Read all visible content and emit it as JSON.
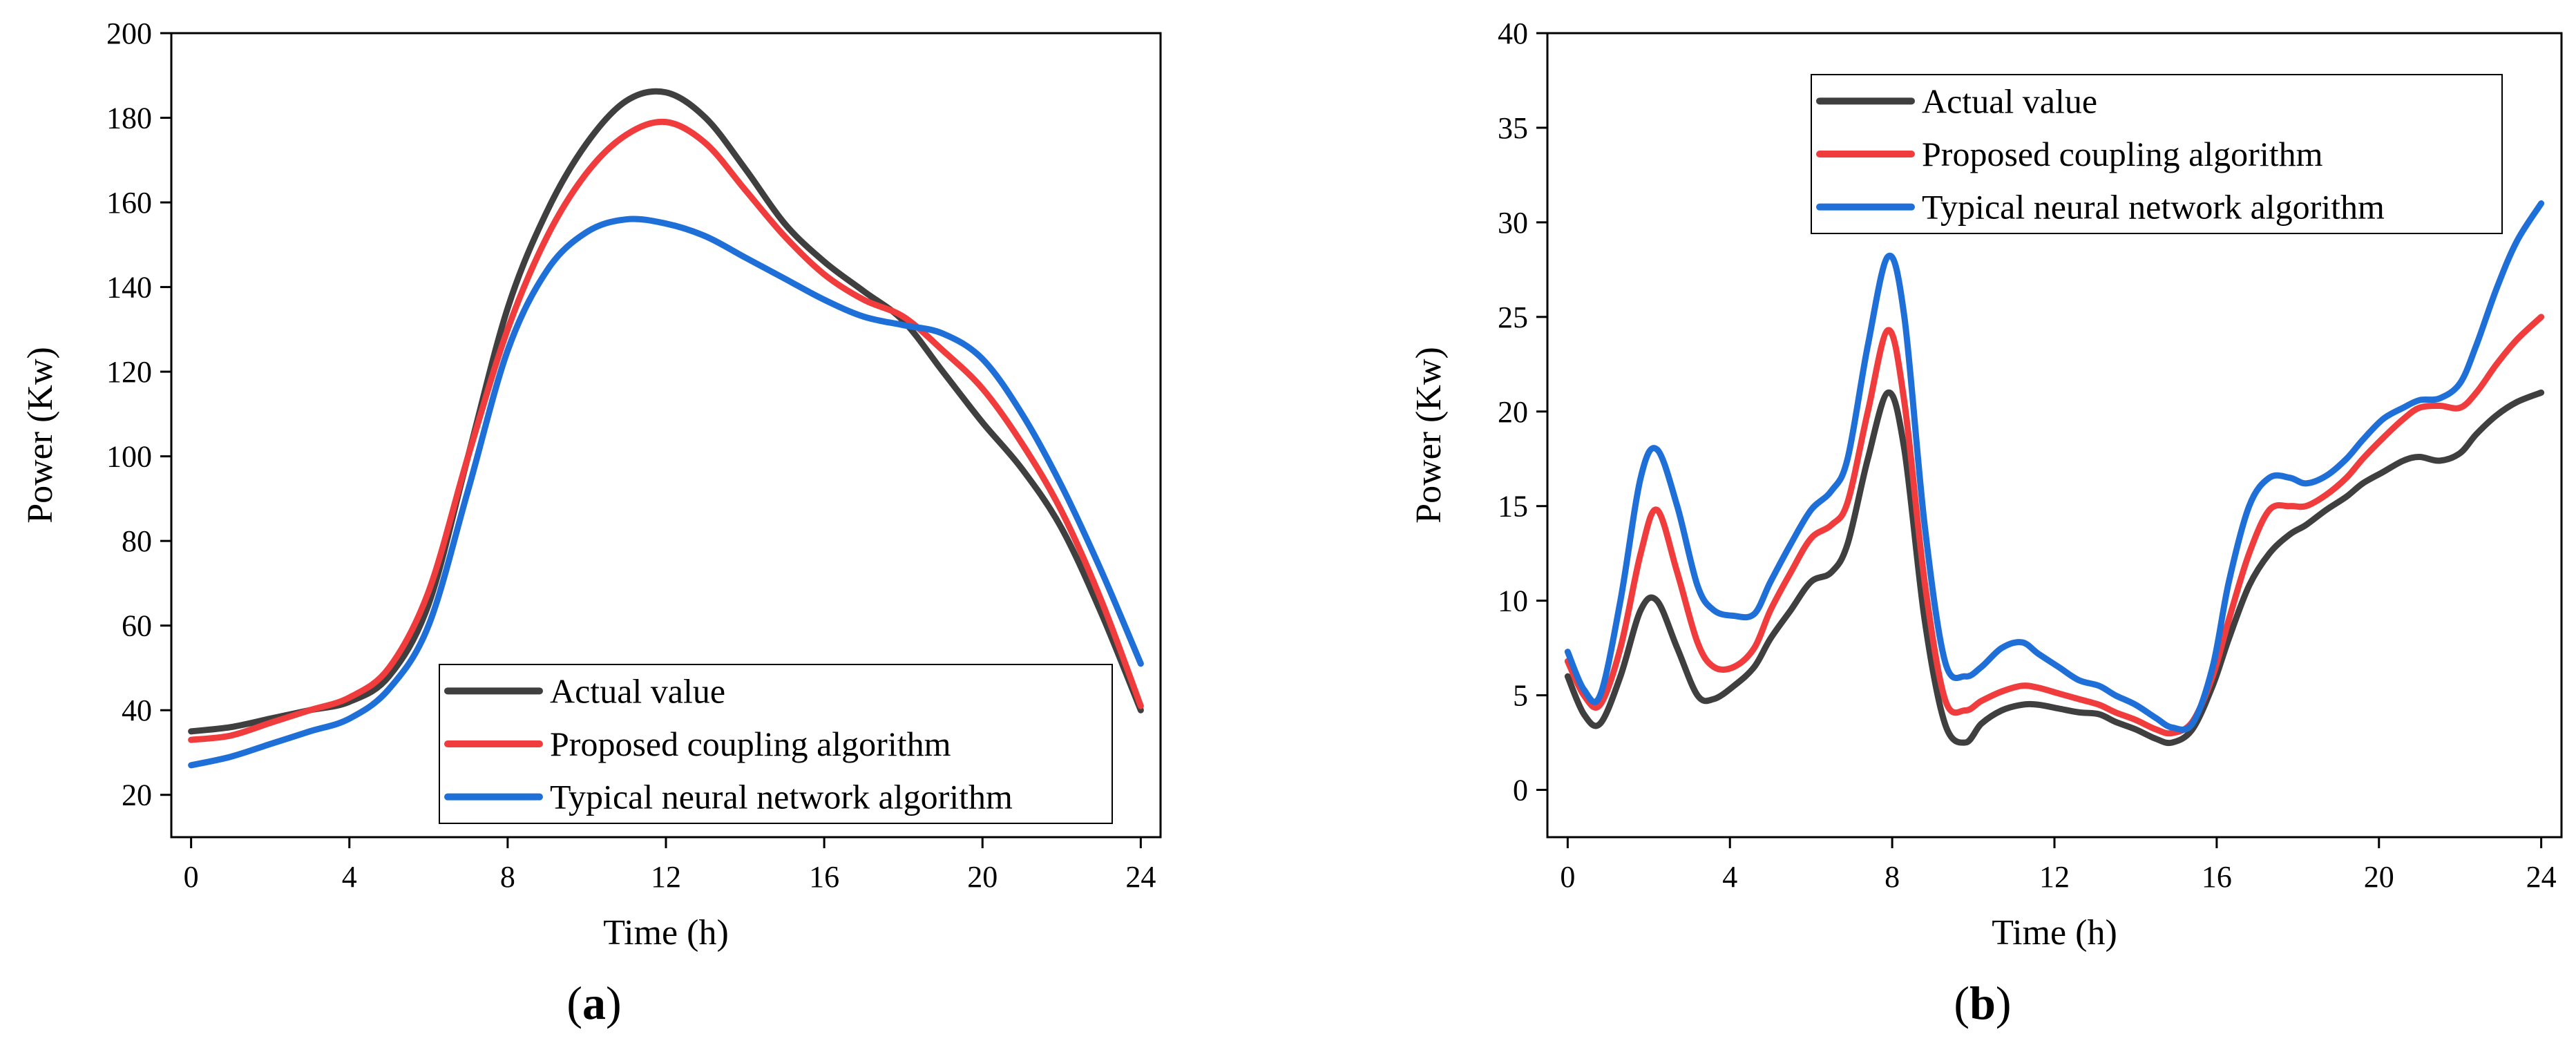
{
  "figure_labels": {
    "a": {
      "open": "(",
      "letter": "a",
      "close": ")"
    },
    "b": {
      "open": "(",
      "letter": "b",
      "close": ")"
    }
  },
  "chart_data": [
    {
      "id": "a",
      "type": "line",
      "xlabel": "Time (h)",
      "ylabel": "Power (Kw)",
      "xlim": [
        -0.5,
        24.5
      ],
      "ylim": [
        10,
        200
      ],
      "xticks": [
        0,
        4,
        8,
        12,
        16,
        20,
        24
      ],
      "yticks": [
        20,
        40,
        60,
        80,
        100,
        120,
        140,
        160,
        180,
        200
      ],
      "legend_position": "bottom-right",
      "series": [
        {
          "name": "Actual value",
          "color": "#3f3f3f",
          "x": [
            0,
            1,
            2,
            3,
            4,
            5,
            6,
            7,
            8,
            9,
            10,
            11,
            12,
            13,
            14,
            15,
            16,
            17,
            18,
            19,
            20,
            21,
            22,
            23,
            24
          ],
          "values": [
            35,
            36,
            38,
            40,
            42,
            48,
            65,
            100,
            135,
            158,
            174,
            184,
            186,
            180,
            168,
            155,
            146,
            139,
            132,
            120,
            108,
            97,
            83,
            63,
            40
          ]
        },
        {
          "name": "Proposed coupling algorithm",
          "color": "#f03c3c",
          "x": [
            0,
            1,
            2,
            3,
            4,
            5,
            6,
            7,
            8,
            9,
            10,
            11,
            12,
            13,
            14,
            15,
            16,
            17,
            18,
            19,
            20,
            21,
            22,
            23,
            24
          ],
          "values": [
            33,
            34,
            37,
            40,
            43,
            50,
            68,
            100,
            130,
            152,
            167,
            176,
            179,
            174,
            163,
            152,
            143,
            137,
            133,
            125,
            116,
            103,
            87,
            66,
            41
          ]
        },
        {
          "name": "Typical neural network algorithm",
          "color": "#1f6fd8",
          "x": [
            0,
            1,
            2,
            3,
            4,
            5,
            6,
            7,
            8,
            9,
            10,
            11,
            12,
            13,
            14,
            15,
            16,
            17,
            18,
            19,
            20,
            21,
            22,
            23,
            24
          ],
          "values": [
            27,
            29,
            32,
            35,
            38,
            45,
            60,
            92,
            125,
            144,
            153,
            156,
            155,
            152,
            147,
            142,
            137,
            133,
            131,
            129,
            123,
            110,
            93,
            73,
            51
          ]
        }
      ]
    },
    {
      "id": "b",
      "type": "line",
      "xlabel": "Time (h)",
      "ylabel": "Power (Kw)",
      "xlim": [
        -0.5,
        24.5
      ],
      "ylim": [
        -2.5,
        40
      ],
      "xticks": [
        0,
        4,
        8,
        12,
        16,
        20,
        24
      ],
      "yticks": [
        0,
        5,
        10,
        15,
        20,
        25,
        30,
        35,
        40
      ],
      "legend_position": "top-right",
      "series": [
        {
          "name": "Actual value",
          "color": "#3f3f3f",
          "x": [
            0,
            0.4,
            0.8,
            1.3,
            1.8,
            2.2,
            2.7,
            3.2,
            3.6,
            4.1,
            4.6,
            5.0,
            5.5,
            6.0,
            6.5,
            6.9,
            7.4,
            7.9,
            8.3,
            8.8,
            9.3,
            9.8,
            10.2,
            10.7,
            11.2,
            11.6,
            12.1,
            12.6,
            13.1,
            13.5,
            14.0,
            14.5,
            14.9,
            15.4,
            15.9,
            16.3,
            16.8,
            17.3,
            17.8,
            18.2,
            18.7,
            19.2,
            19.6,
            20.1,
            20.6,
            21.0,
            21.5,
            22.0,
            22.4,
            22.9,
            23.4,
            24
          ],
          "values": [
            6,
            4,
            3.5,
            6,
            9.5,
            10,
            7.5,
            5,
            4.8,
            5.5,
            6.5,
            8,
            9.5,
            11,
            11.5,
            13,
            17.5,
            21,
            18,
            9,
            3.5,
            2.5,
            3.5,
            4.2,
            4.5,
            4.5,
            4.3,
            4.1,
            4,
            3.6,
            3.2,
            2.7,
            2.5,
            3.2,
            5.5,
            8,
            10.8,
            12.5,
            13.5,
            14,
            14.8,
            15.5,
            16.2,
            16.8,
            17.4,
            17.6,
            17.4,
            17.8,
            18.8,
            19.8,
            20.5,
            21
          ]
        },
        {
          "name": "Proposed coupling algorithm",
          "color": "#f03c3c",
          "x": [
            0,
            0.4,
            0.8,
            1.3,
            1.8,
            2.2,
            2.7,
            3.2,
            3.6,
            4.1,
            4.6,
            5.0,
            5.5,
            6.0,
            6.5,
            6.9,
            7.4,
            7.9,
            8.3,
            8.8,
            9.3,
            9.8,
            10.2,
            10.7,
            11.2,
            11.6,
            12.1,
            12.6,
            13.1,
            13.5,
            14.0,
            14.5,
            14.9,
            15.4,
            15.9,
            16.3,
            16.8,
            17.3,
            17.8,
            18.2,
            18.7,
            19.2,
            19.6,
            20.1,
            20.6,
            21.0,
            21.5,
            22.0,
            22.4,
            22.9,
            23.4,
            24
          ],
          "values": [
            6.8,
            5,
            4.5,
            7.5,
            12.5,
            14.8,
            11.5,
            7.8,
            6.5,
            6.5,
            7.5,
            9.5,
            11.5,
            13.3,
            14,
            15.2,
            20,
            24.3,
            20.5,
            11,
            4.8,
            4.2,
            4.7,
            5.2,
            5.5,
            5.4,
            5.1,
            4.8,
            4.5,
            4.1,
            3.7,
            3.2,
            3,
            3.6,
            6,
            9,
            12.5,
            14.8,
            15,
            15,
            15.6,
            16.5,
            17.5,
            18.6,
            19.6,
            20.2,
            20.3,
            20.2,
            21,
            22.5,
            23.8,
            25
          ]
        },
        {
          "name": "Typical neural network algorithm",
          "color": "#1f6fd8",
          "x": [
            0,
            0.4,
            0.8,
            1.3,
            1.8,
            2.2,
            2.7,
            3.2,
            3.6,
            4.1,
            4.6,
            5.0,
            5.5,
            6.0,
            6.5,
            6.9,
            7.4,
            7.9,
            8.3,
            8.8,
            9.3,
            9.8,
            10.2,
            10.7,
            11.2,
            11.6,
            12.1,
            12.6,
            13.1,
            13.5,
            14.0,
            14.5,
            14.9,
            15.4,
            15.9,
            16.3,
            16.8,
            17.3,
            17.8,
            18.2,
            18.7,
            19.2,
            19.6,
            20.1,
            20.6,
            21.0,
            21.5,
            22.0,
            22.4,
            22.9,
            23.4,
            24
          ],
          "values": [
            7.3,
            5.3,
            5,
            10,
            16.5,
            18,
            15,
            10.8,
            9.5,
            9.2,
            9.3,
            11,
            13,
            14.8,
            15.8,
            17.5,
            23.5,
            28.2,
            25,
            14,
            6.8,
            6,
            6.5,
            7.5,
            7.8,
            7.2,
            6.5,
            5.8,
            5.5,
            5,
            4.5,
            3.8,
            3.3,
            3.5,
            6.5,
            11,
            15,
            16.5,
            16.5,
            16.2,
            16.6,
            17.5,
            18.5,
            19.6,
            20.2,
            20.6,
            20.7,
            21.5,
            23.5,
            26.5,
            29,
            31
          ]
        }
      ]
    }
  ]
}
